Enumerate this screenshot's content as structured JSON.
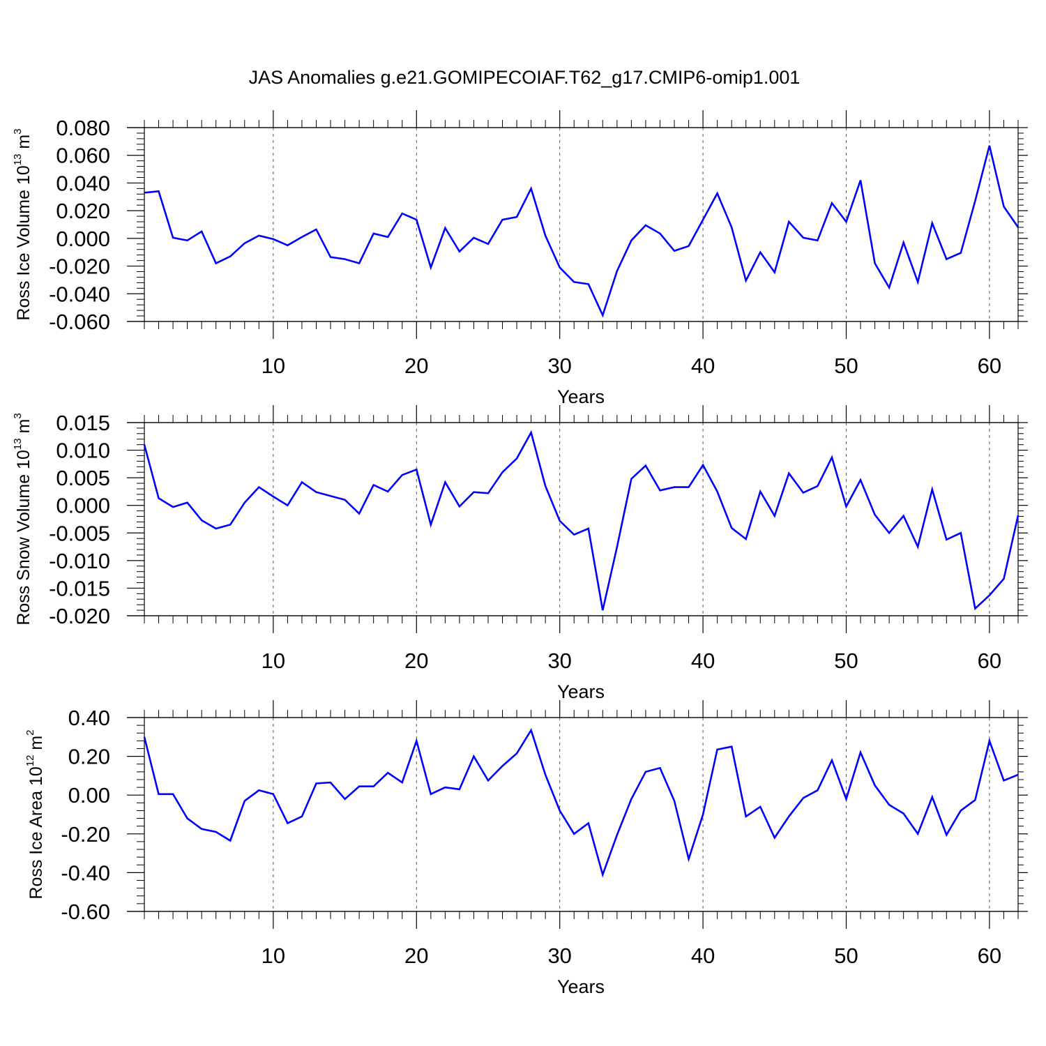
{
  "title": "JAS Anomalies g.e21.GOMIPECOIAF.T62_g17.CMIP6-omip1.001",
  "chart_data": [
    {
      "type": "line",
      "ylabel": {
        "prefix": "Ross Ice Volume 10",
        "exponent": "13",
        "unit": " m",
        "unit_exponent": "3"
      },
      "xlabel": "Years",
      "xlim": [
        1,
        62
      ],
      "xticks": [
        "10",
        "20",
        "30",
        "40",
        "50",
        "60"
      ],
      "ylim": [
        -0.06,
        0.08
      ],
      "yticks": [
        "-0.060",
        "-0.040",
        "-0.020",
        "0.000",
        "0.020",
        "0.040",
        "0.060",
        "0.080"
      ],
      "grid": "dashed vertical at major x ticks",
      "line_color": "#0000ff",
      "x_start": 1,
      "values": [
        0.033,
        0.034,
        0.0005,
        -0.0015,
        0.005,
        -0.018,
        -0.013,
        -0.0035,
        0.002,
        -0.0005,
        -0.005,
        0.001,
        0.0065,
        -0.0135,
        -0.015,
        -0.018,
        0.0035,
        0.001,
        0.018,
        0.0135,
        -0.021,
        0.0075,
        -0.0095,
        0.0005,
        -0.004,
        0.0135,
        0.0155,
        0.036,
        0.002,
        -0.021,
        -0.0315,
        -0.033,
        -0.0555,
        -0.0235,
        -0.0015,
        0.0095,
        0.0035,
        -0.009,
        -0.0055,
        0.0135,
        0.0325,
        0.008,
        -0.0305,
        -0.01,
        -0.0245,
        0.012,
        0.0005,
        -0.0015,
        0.0255,
        0.012,
        0.042,
        -0.018,
        -0.0355,
        -0.003,
        -0.0315,
        0.011,
        -0.015,
        -0.0105,
        0.027,
        0.067,
        0.023,
        0.008
      ]
    },
    {
      "type": "line",
      "ylabel": {
        "prefix": "Ross Snow Volume 10",
        "exponent": "13",
        "unit": " m",
        "unit_exponent": "3"
      },
      "xlabel": "Years",
      "xlim": [
        1,
        62
      ],
      "xticks": [
        "10",
        "20",
        "30",
        "40",
        "50",
        "60"
      ],
      "ylim": [
        -0.02,
        0.015
      ],
      "yticks": [
        "-0.020",
        "-0.015",
        "-0.010",
        "-0.005",
        "0.000",
        "0.005",
        "0.010",
        "0.015"
      ],
      "grid": "dashed vertical at major x ticks",
      "line_color": "#0000ff",
      "x_start": 1,
      "values": [
        0.011,
        0.0013,
        -0.0003,
        0.0005,
        -0.0027,
        -0.0042,
        -0.0035,
        0.0005,
        0.0033,
        0.0016,
        0.0,
        0.0042,
        0.0024,
        0.0017,
        0.001,
        -0.0015,
        0.0037,
        0.0025,
        0.0055,
        0.0065,
        -0.0035,
        0.0042,
        -0.0002,
        0.0024,
        0.0022,
        0.006,
        0.0085,
        0.0132,
        0.0035,
        -0.0028,
        -0.0053,
        -0.0042,
        -0.019,
        -0.0075,
        0.0048,
        0.0072,
        0.0027,
        0.0033,
        0.0033,
        0.0073,
        0.0025,
        -0.0041,
        -0.0061,
        0.0025,
        -0.0019,
        0.0058,
        0.0023,
        0.0035,
        0.0087,
        -0.0002,
        0.0046,
        -0.0017,
        -0.005,
        -0.0019,
        -0.0075,
        0.0029,
        -0.0062,
        -0.005,
        -0.0187,
        -0.0163,
        -0.0133,
        -0.0018
      ]
    },
    {
      "type": "line",
      "ylabel": {
        "prefix": "Ross Ice Area 10",
        "exponent": "12",
        "unit": " m",
        "unit_exponent": "2"
      },
      "xlabel": "Years",
      "xlim": [
        1,
        62
      ],
      "xticks": [
        "10",
        "20",
        "30",
        "40",
        "50",
        "60"
      ],
      "ylim": [
        -0.6,
        0.4
      ],
      "yticks": [
        "-0.60",
        "-0.40",
        "-0.20",
        "0.00",
        "0.20",
        "0.40"
      ],
      "grid": "dashed vertical at major x ticks",
      "line_color": "#0000ff",
      "x_start": 1,
      "values": [
        0.3,
        0.005,
        0.005,
        -0.12,
        -0.175,
        -0.19,
        -0.235,
        -0.03,
        0.025,
        0.005,
        -0.145,
        -0.11,
        0.06,
        0.065,
        -0.02,
        0.045,
        0.045,
        0.115,
        0.065,
        0.28,
        0.005,
        0.04,
        0.03,
        0.2,
        0.075,
        0.15,
        0.215,
        0.335,
        0.105,
        -0.08,
        -0.2,
        -0.145,
        -0.41,
        -0.205,
        -0.02,
        0.12,
        0.14,
        -0.03,
        -0.33,
        -0.1,
        0.235,
        0.25,
        -0.11,
        -0.06,
        -0.22,
        -0.11,
        -0.015,
        0.025,
        0.18,
        -0.02,
        0.22,
        0.05,
        -0.05,
        -0.095,
        -0.2,
        -0.01,
        -0.205,
        -0.08,
        -0.025,
        0.28,
        0.075,
        0.105
      ]
    }
  ]
}
